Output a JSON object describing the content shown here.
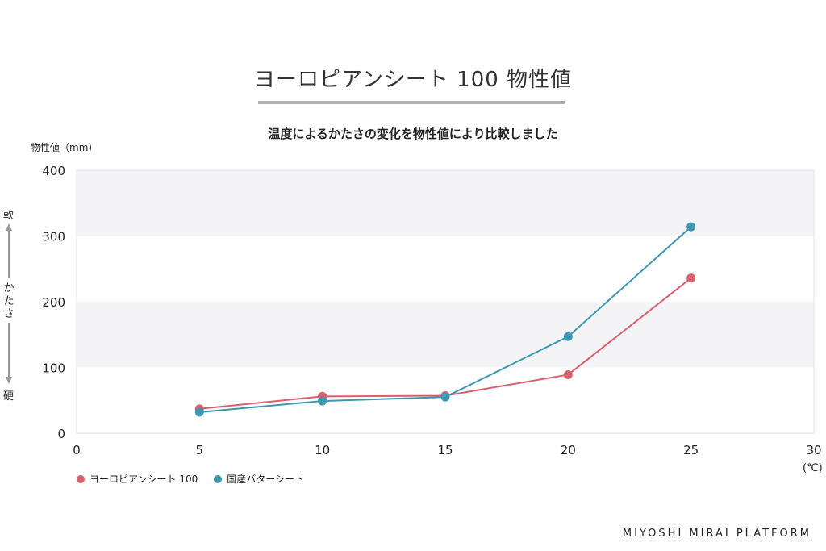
{
  "chart_data": {
    "type": "line",
    "title": "ヨーロピアンシート 100 物性値",
    "subtitle": "温度によるかたさの変化を物性値により比較しました",
    "ylabel": "物性値（mm)",
    "xunit": "(℃)",
    "x_ticks": [
      "0",
      "5",
      "10",
      "15",
      "20",
      "25",
      "30"
    ],
    "y_ticks": [
      "0",
      "100",
      "200",
      "300",
      "400"
    ],
    "xlim": [
      0,
      30
    ],
    "ylim": [
      0,
      400
    ],
    "grid": "horizontal bands",
    "legend_position": "bottom-left",
    "side_labels": {
      "soft": "軟",
      "middle": [
        "か",
        "た",
        "さ"
      ],
      "hard": "硬"
    },
    "series": [
      {
        "name": "ヨーロピアンシート 100",
        "color": "#d9606d",
        "points": [
          [
            5,
            37
          ],
          [
            10,
            56
          ],
          [
            15,
            57
          ],
          [
            20,
            89
          ],
          [
            25,
            236
          ]
        ]
      },
      {
        "name": "国産バターシート",
        "color": "#3b98b0",
        "points": [
          [
            5,
            32
          ],
          [
            10,
            49
          ],
          [
            15,
            55
          ],
          [
            20,
            147
          ],
          [
            25,
            314
          ]
        ]
      }
    ]
  },
  "brand": "MIYOSHI MIRAI PLATFORM"
}
